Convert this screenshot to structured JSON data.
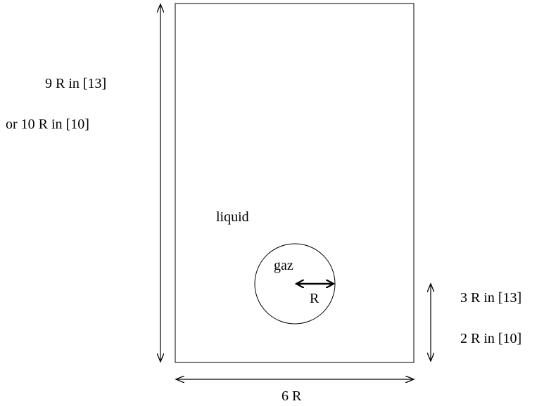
{
  "labels": {
    "height_option_a": "9 R in [13]",
    "height_option_b": "or 10 R in [10]",
    "fluid_outside": "liquid",
    "fluid_inside": "gaz",
    "radius": "R",
    "bubble_offset_a": "3 R in [13]",
    "bubble_offset_b": "2 R in [10]",
    "width": "6 R"
  },
  "colors": {
    "stroke": "#000000",
    "background": "#ffffff"
  }
}
